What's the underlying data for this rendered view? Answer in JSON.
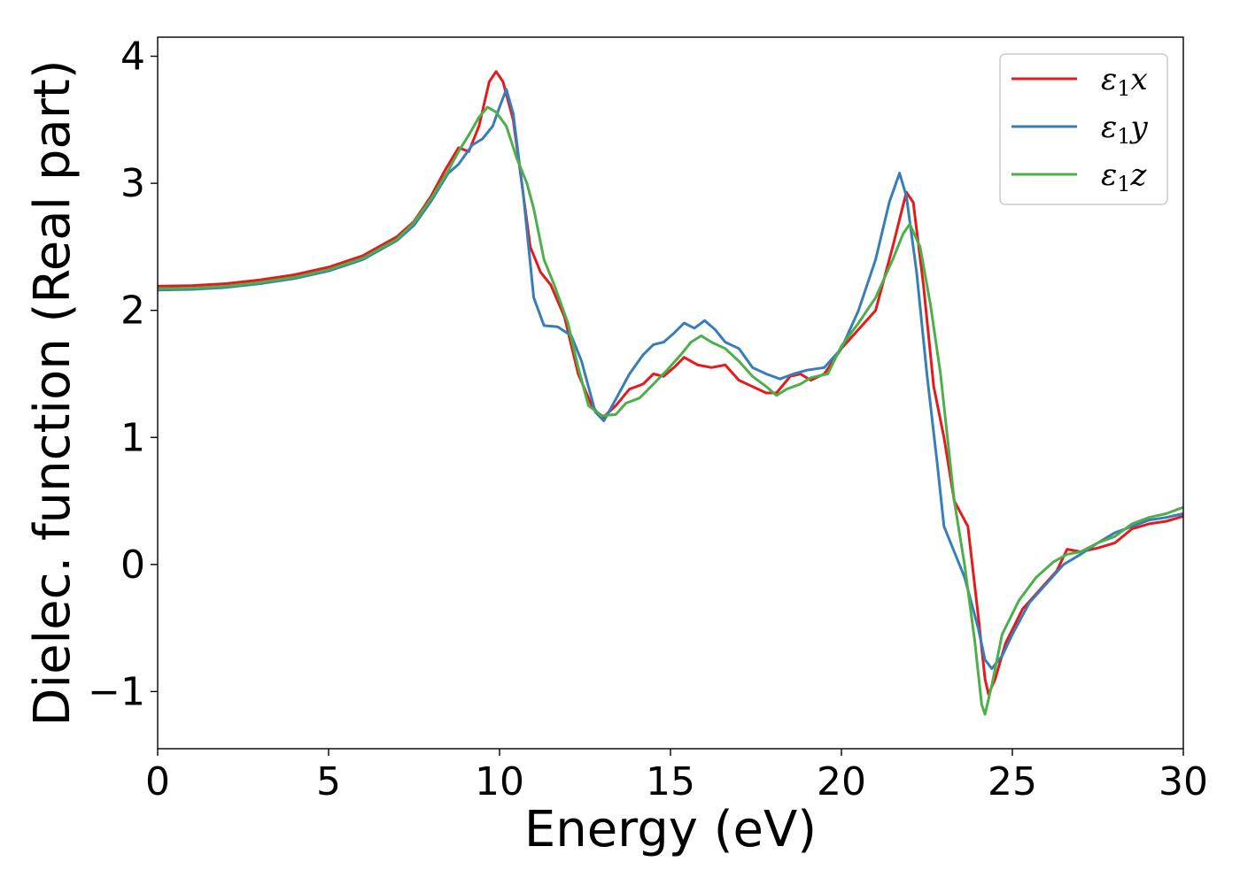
{
  "chart_data": {
    "type": "line",
    "xlabel": "Energy (eV)",
    "ylabel": "Dielec. function (Real part)",
    "xlim": [
      0,
      30
    ],
    "ylim": [
      -1.45,
      4.15
    ],
    "xticks": [
      0,
      5,
      10,
      15,
      20,
      25,
      30
    ],
    "yticks": [
      -1,
      0,
      1,
      2,
      3,
      4
    ],
    "xtick_labels": [
      "0",
      "5",
      "10",
      "15",
      "20",
      "25",
      "30"
    ],
    "ytick_labels": [
      "−1",
      "0",
      "1",
      "2",
      "3",
      "4"
    ],
    "grid": false,
    "legend_position": "top-right",
    "series": [
      {
        "name": "ε₁x",
        "legend_symbol": "ε",
        "legend_sub": "1",
        "legend_var": "x",
        "color": "#e41a1c",
        "points": [
          [
            0,
            2.19
          ],
          [
            1,
            2.195
          ],
          [
            2,
            2.21
          ],
          [
            3,
            2.24
          ],
          [
            4,
            2.28
          ],
          [
            5,
            2.34
          ],
          [
            6,
            2.43
          ],
          [
            7,
            2.58
          ],
          [
            7.5,
            2.7
          ],
          [
            8,
            2.9
          ],
          [
            8.4,
            3.1
          ],
          [
            8.8,
            3.28
          ],
          [
            9.1,
            3.25
          ],
          [
            9.4,
            3.45
          ],
          [
            9.7,
            3.8
          ],
          [
            9.9,
            3.88
          ],
          [
            10.1,
            3.8
          ],
          [
            10.4,
            3.5
          ],
          [
            10.6,
            3.1
          ],
          [
            10.9,
            2.5
          ],
          [
            11.2,
            2.3
          ],
          [
            11.5,
            2.2
          ],
          [
            11.9,
            1.95
          ],
          [
            12.3,
            1.5
          ],
          [
            12.7,
            1.25
          ],
          [
            13.0,
            1.15
          ],
          [
            13.4,
            1.25
          ],
          [
            13.8,
            1.38
          ],
          [
            14.2,
            1.42
          ],
          [
            14.5,
            1.5
          ],
          [
            14.8,
            1.48
          ],
          [
            15.1,
            1.55
          ],
          [
            15.4,
            1.63
          ],
          [
            15.8,
            1.57
          ],
          [
            16.2,
            1.55
          ],
          [
            16.6,
            1.57
          ],
          [
            17.0,
            1.45
          ],
          [
            17.4,
            1.4
          ],
          [
            17.8,
            1.35
          ],
          [
            18.1,
            1.35
          ],
          [
            18.5,
            1.48
          ],
          [
            18.8,
            1.5
          ],
          [
            19.1,
            1.45
          ],
          [
            19.5,
            1.5
          ],
          [
            20.0,
            1.7
          ],
          [
            20.5,
            1.85
          ],
          [
            21.0,
            2.0
          ],
          [
            21.5,
            2.5
          ],
          [
            21.9,
            2.93
          ],
          [
            22.1,
            2.85
          ],
          [
            22.4,
            2.2
          ],
          [
            22.7,
            1.4
          ],
          [
            23.0,
            1.0
          ],
          [
            23.3,
            0.5
          ],
          [
            23.7,
            0.3
          ],
          [
            24.0,
            -0.4
          ],
          [
            24.2,
            -0.9
          ],
          [
            24.3,
            -1.02
          ],
          [
            24.5,
            -0.9
          ],
          [
            24.8,
            -0.62
          ],
          [
            25.3,
            -0.35
          ],
          [
            25.8,
            -0.2
          ],
          [
            26.3,
            -0.05
          ],
          [
            26.6,
            0.12
          ],
          [
            27.0,
            0.1
          ],
          [
            27.5,
            0.13
          ],
          [
            28.0,
            0.17
          ],
          [
            28.5,
            0.28
          ],
          [
            29.0,
            0.32
          ],
          [
            29.5,
            0.34
          ],
          [
            30.0,
            0.38
          ]
        ]
      },
      {
        "name": "ε₁y",
        "legend_symbol": "ε",
        "legend_sub": "1",
        "legend_var": "y",
        "color": "#377eb8",
        "points": [
          [
            0,
            2.16
          ],
          [
            1,
            2.165
          ],
          [
            2,
            2.18
          ],
          [
            3,
            2.21
          ],
          [
            4,
            2.25
          ],
          [
            5,
            2.31
          ],
          [
            6,
            2.4
          ],
          [
            7,
            2.55
          ],
          [
            7.5,
            2.67
          ],
          [
            8,
            2.86
          ],
          [
            8.5,
            3.08
          ],
          [
            8.8,
            3.15
          ],
          [
            9.2,
            3.3
          ],
          [
            9.5,
            3.35
          ],
          [
            9.8,
            3.45
          ],
          [
            10.0,
            3.6
          ],
          [
            10.2,
            3.74
          ],
          [
            10.4,
            3.55
          ],
          [
            10.7,
            2.9
          ],
          [
            11.0,
            2.1
          ],
          [
            11.3,
            1.88
          ],
          [
            11.7,
            1.87
          ],
          [
            12.1,
            1.8
          ],
          [
            12.4,
            1.6
          ],
          [
            12.8,
            1.2
          ],
          [
            13.05,
            1.13
          ],
          [
            13.4,
            1.3
          ],
          [
            13.8,
            1.5
          ],
          [
            14.2,
            1.65
          ],
          [
            14.5,
            1.73
          ],
          [
            14.8,
            1.75
          ],
          [
            15.1,
            1.82
          ],
          [
            15.4,
            1.9
          ],
          [
            15.7,
            1.86
          ],
          [
            16.0,
            1.92
          ],
          [
            16.3,
            1.85
          ],
          [
            16.6,
            1.75
          ],
          [
            17.0,
            1.7
          ],
          [
            17.4,
            1.55
          ],
          [
            17.8,
            1.5
          ],
          [
            18.2,
            1.46
          ],
          [
            18.6,
            1.5
          ],
          [
            19.0,
            1.53
          ],
          [
            19.5,
            1.55
          ],
          [
            20.0,
            1.7
          ],
          [
            20.5,
            2.0
          ],
          [
            21.0,
            2.4
          ],
          [
            21.4,
            2.85
          ],
          [
            21.7,
            3.08
          ],
          [
            21.9,
            2.9
          ],
          [
            22.2,
            2.3
          ],
          [
            22.5,
            1.5
          ],
          [
            22.8,
            0.8
          ],
          [
            23.0,
            0.3
          ],
          [
            23.3,
            0.1
          ],
          [
            23.6,
            -0.1
          ],
          [
            24.0,
            -0.5
          ],
          [
            24.2,
            -0.75
          ],
          [
            24.4,
            -0.82
          ],
          [
            24.7,
            -0.72
          ],
          [
            25.0,
            -0.55
          ],
          [
            25.5,
            -0.3
          ],
          [
            26.0,
            -0.15
          ],
          [
            26.5,
            0.0
          ],
          [
            27.0,
            0.08
          ],
          [
            27.5,
            0.17
          ],
          [
            28.0,
            0.25
          ],
          [
            28.5,
            0.3
          ],
          [
            29.0,
            0.35
          ],
          [
            29.5,
            0.37
          ],
          [
            30.0,
            0.4
          ]
        ]
      },
      {
        "name": "ε₁z",
        "legend_symbol": "ε",
        "legend_sub": "1",
        "legend_var": "z",
        "color": "#4daf4a",
        "points": [
          [
            0,
            2.17
          ],
          [
            1,
            2.175
          ],
          [
            2,
            2.19
          ],
          [
            3,
            2.22
          ],
          [
            4,
            2.26
          ],
          [
            5,
            2.32
          ],
          [
            6,
            2.41
          ],
          [
            7,
            2.56
          ],
          [
            7.5,
            2.69
          ],
          [
            8,
            2.88
          ],
          [
            8.5,
            3.1
          ],
          [
            8.8,
            3.25
          ],
          [
            9.1,
            3.38
          ],
          [
            9.4,
            3.52
          ],
          [
            9.65,
            3.6
          ],
          [
            9.9,
            3.56
          ],
          [
            10.2,
            3.45
          ],
          [
            10.5,
            3.2
          ],
          [
            10.8,
            3.0
          ],
          [
            11.0,
            2.8
          ],
          [
            11.3,
            2.4
          ],
          [
            11.6,
            2.2
          ],
          [
            12.0,
            1.9
          ],
          [
            12.3,
            1.55
          ],
          [
            12.6,
            1.25
          ],
          [
            13.0,
            1.17
          ],
          [
            13.4,
            1.18
          ],
          [
            13.7,
            1.27
          ],
          [
            14.1,
            1.31
          ],
          [
            14.5,
            1.42
          ],
          [
            14.9,
            1.53
          ],
          [
            15.3,
            1.65
          ],
          [
            15.6,
            1.75
          ],
          [
            15.9,
            1.8
          ],
          [
            16.2,
            1.75
          ],
          [
            16.6,
            1.7
          ],
          [
            17.0,
            1.6
          ],
          [
            17.4,
            1.48
          ],
          [
            17.8,
            1.4
          ],
          [
            18.1,
            1.33
          ],
          [
            18.4,
            1.38
          ],
          [
            18.8,
            1.42
          ],
          [
            19.1,
            1.47
          ],
          [
            19.6,
            1.5
          ],
          [
            20.0,
            1.72
          ],
          [
            20.5,
            1.9
          ],
          [
            21.0,
            2.1
          ],
          [
            21.5,
            2.4
          ],
          [
            21.8,
            2.6
          ],
          [
            22.0,
            2.68
          ],
          [
            22.3,
            2.5
          ],
          [
            22.6,
            2.05
          ],
          [
            22.9,
            1.5
          ],
          [
            23.1,
            1.0
          ],
          [
            23.3,
            0.5
          ],
          [
            23.6,
            0.0
          ],
          [
            23.9,
            -0.6
          ],
          [
            24.1,
            -1.1
          ],
          [
            24.2,
            -1.18
          ],
          [
            24.4,
            -0.95
          ],
          [
            24.7,
            -0.55
          ],
          [
            25.2,
            -0.28
          ],
          [
            25.7,
            -0.1
          ],
          [
            26.2,
            0.02
          ],
          [
            26.6,
            0.08
          ],
          [
            27.0,
            0.1
          ],
          [
            27.5,
            0.17
          ],
          [
            28.0,
            0.22
          ],
          [
            28.5,
            0.32
          ],
          [
            29.0,
            0.37
          ],
          [
            29.5,
            0.4
          ],
          [
            30.0,
            0.45
          ]
        ]
      }
    ]
  }
}
